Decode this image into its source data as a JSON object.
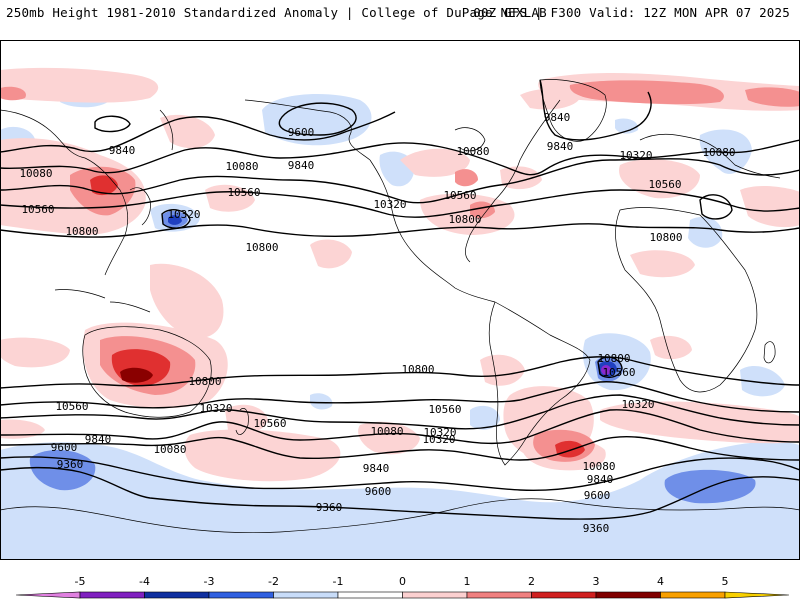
{
  "header": {
    "left_title": "250mb Height 1981-2010 Standardized Anomaly | College of DuPage NEXLAB",
    "right_title": "00Z GFS | F300 Valid: 12Z MON APR 07 2025"
  },
  "colorbar": {
    "ticks": [
      "-5",
      "-4",
      "-3",
      "-2",
      "-1",
      "0",
      "1",
      "2",
      "3",
      "4",
      "5"
    ],
    "colors": [
      "#e080e0",
      "#8020c0",
      "#1030a0",
      "#3060e0",
      "#c8dcf8",
      "#ffffff",
      "#fcd0d0",
      "#f08080",
      "#d02020",
      "#800000",
      "#f8a000",
      "#f8d000"
    ]
  },
  "anomaly_colors": {
    "pos1": "#fcd4d4",
    "pos2": "#f49090",
    "pos3": "#e03030",
    "pos4": "#8a0000",
    "neg1": "#cfe0fa",
    "neg2": "#6f8fe8",
    "neg3": "#2040c0",
    "neg4": "#8a2ad0"
  },
  "contour_labels": [
    {
      "id": "l1",
      "text": "9600"
    },
    {
      "id": "l2",
      "text": "9840"
    },
    {
      "id": "l3",
      "text": "10080"
    },
    {
      "id": "l4",
      "text": "10560"
    },
    {
      "id": "l5",
      "text": "10800"
    },
    {
      "id": "l6",
      "text": "10320"
    },
    {
      "id": "l7",
      "text": "10080"
    },
    {
      "id": "l8",
      "text": "10560"
    },
    {
      "id": "l9",
      "text": "10800"
    },
    {
      "id": "l10",
      "text": "9840"
    },
    {
      "id": "l11",
      "text": "10320"
    },
    {
      "id": "l12",
      "text": "10080"
    },
    {
      "id": "l13",
      "text": "10560"
    },
    {
      "id": "l14",
      "text": "10800"
    },
    {
      "id": "l15",
      "text": "9840"
    },
    {
      "id": "l16",
      "text": "9840"
    },
    {
      "id": "l17",
      "text": "10320"
    },
    {
      "id": "l18",
      "text": "10080"
    },
    {
      "id": "l19",
      "text": "10560"
    },
    {
      "id": "l20",
      "text": "10800"
    },
    {
      "id": "l21",
      "text": "10800"
    },
    {
      "id": "l22",
      "text": "10800"
    },
    {
      "id": "l23",
      "text": "10560"
    },
    {
      "id": "l24",
      "text": "10320"
    },
    {
      "id": "l25",
      "text": "10560"
    },
    {
      "id": "l26",
      "text": "10320"
    },
    {
      "id": "l27",
      "text": "10080"
    },
    {
      "id": "l28",
      "text": "9840"
    },
    {
      "id": "l29",
      "text": "9600"
    },
    {
      "id": "l30",
      "text": "9360"
    },
    {
      "id": "l31",
      "text": "9600"
    },
    {
      "id": "l32",
      "text": "9360"
    },
    {
      "id": "l33",
      "text": "10800"
    },
    {
      "id": "l34",
      "text": "10560"
    },
    {
      "id": "l35",
      "text": "10320"
    },
    {
      "id": "l36",
      "text": "10560"
    },
    {
      "id": "l37",
      "text": "10080"
    },
    {
      "id": "l38",
      "text": "10320"
    },
    {
      "id": "l39",
      "text": "10080"
    },
    {
      "id": "l40",
      "text": "9840"
    },
    {
      "id": "l41",
      "text": "9600"
    },
    {
      "id": "l42",
      "text": "9360"
    },
    {
      "id": "l43",
      "text": "9840"
    }
  ]
}
